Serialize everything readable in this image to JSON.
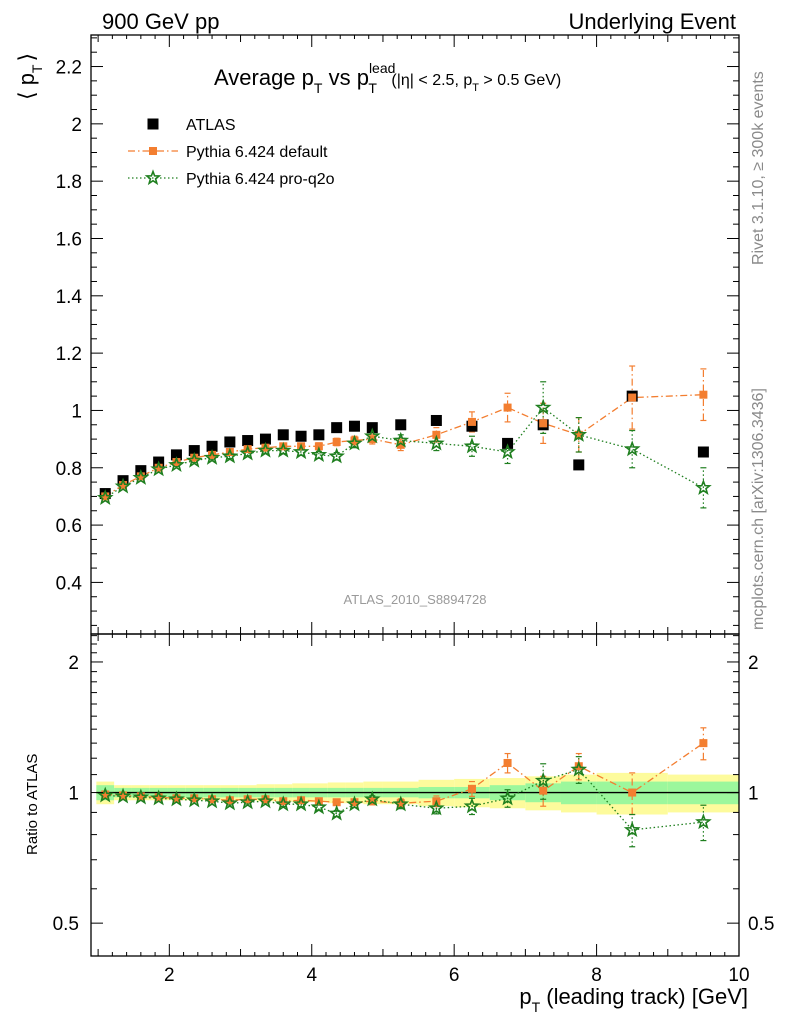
{
  "header": {
    "left": "900 GeV pp",
    "right": "Underlying Event"
  },
  "side_text": {
    "rivet": "Rivet 3.1.10, ≥ 300k events",
    "mcplots": "mcplots.cern.ch [arXiv:1306.3436]"
  },
  "chart_data": [
    {
      "type": "scatter",
      "title": {
        "prefix": "Average p",
        "prefix_sub": "T",
        "vs": " vs p",
        "vs_sup": "lead",
        "vs_sub": "T",
        "cuts_1": "(|η| < 2.5, p",
        "cuts_sub": "T",
        "cuts_2": " > 0.5 GeV)"
      },
      "ylabel": {
        "main": "⟨ p",
        "sub": "T",
        "close": "⟩"
      },
      "watermark": "ATLAS_2010_S8894728",
      "xlim": [
        0.9,
        10.0
      ],
      "ylim": [
        0.22,
        2.31
      ],
      "y_ticks": [
        0.4,
        0.6,
        0.8,
        1,
        1.2,
        1.4,
        1.6,
        1.8,
        2,
        2.2
      ],
      "y_tick_labels": [
        "0.4",
        "0.6",
        "0.8",
        "1",
        "1.2",
        "1.4",
        "1.6",
        "1.8",
        "2",
        "2.2"
      ],
      "x": [
        1.1,
        1.35,
        1.6,
        1.85,
        2.1,
        2.35,
        2.6,
        2.85,
        3.1,
        3.35,
        3.6,
        3.85,
        4.1,
        4.35,
        4.6,
        4.85,
        5.25,
        5.75,
        6.25,
        6.75,
        7.25,
        7.75,
        8.5,
        9.5
      ],
      "series": [
        {
          "name": "ATLAS",
          "color": "#000000",
          "marker": "square",
          "values": [
            0.71,
            0.755,
            0.79,
            0.82,
            0.845,
            0.86,
            0.875,
            0.89,
            0.895,
            0.9,
            0.915,
            0.91,
            0.915,
            0.94,
            0.945,
            0.94,
            0.95,
            0.965,
            0.945,
            0.885,
            0.95,
            0.81,
            1.05,
            0.855
          ]
        },
        {
          "name": "Pythia 6.424 default",
          "color": "#f37e30",
          "marker": "square-small",
          "line": "dashdot",
          "values": [
            0.7,
            0.74,
            0.77,
            0.8,
            0.82,
            0.835,
            0.845,
            0.855,
            0.865,
            0.87,
            0.875,
            0.875,
            0.875,
            0.89,
            0.895,
            0.9,
            0.88,
            0.915,
            0.96,
            1.01,
            0.955,
            0.915,
            1.045,
            1.055
          ],
          "errors": [
            0.005,
            0.005,
            0.005,
            0.006,
            0.006,
            0.007,
            0.007,
            0.008,
            0.008,
            0.009,
            0.01,
            0.011,
            0.012,
            0.013,
            0.015,
            0.017,
            0.02,
            0.025,
            0.035,
            0.05,
            0.07,
            0.06,
            0.11,
            0.09
          ]
        },
        {
          "name": "Pythia 6.424 pro-q2o",
          "color": "#1f7f1f",
          "marker": "star",
          "line": "dotted",
          "values": [
            0.695,
            0.735,
            0.765,
            0.795,
            0.81,
            0.825,
            0.835,
            0.84,
            0.85,
            0.86,
            0.86,
            0.855,
            0.845,
            0.84,
            0.885,
            0.91,
            0.895,
            0.885,
            0.875,
            0.855,
            1.01,
            0.915,
            0.865,
            0.73
          ],
          "errors": [
            0.005,
            0.005,
            0.005,
            0.006,
            0.006,
            0.007,
            0.007,
            0.008,
            0.008,
            0.009,
            0.01,
            0.011,
            0.012,
            0.013,
            0.015,
            0.017,
            0.02,
            0.025,
            0.035,
            0.04,
            0.09,
            0.06,
            0.065,
            0.07
          ]
        }
      ]
    },
    {
      "type": "scatter",
      "ylabel": "Ratio to ATLAS",
      "xlabel": {
        "main": "p",
        "sub": "T",
        "rest": " (leading track) [GeV]"
      },
      "scale": "log",
      "xlim": [
        0.9,
        10.0
      ],
      "ylim": [
        0.42,
        2.32
      ],
      "x_ticks": [
        2,
        4,
        6,
        8,
        10
      ],
      "x_tick_labels": [
        "2",
        "4",
        "6",
        "8",
        "10"
      ],
      "y_ticks": [
        0.5,
        1,
        2
      ],
      "y_tick_labels": [
        "0.5",
        "1",
        "2"
      ],
      "band_x_edges": [
        0.975,
        1.225,
        1.475,
        1.725,
        1.975,
        2.225,
        2.475,
        2.725,
        2.975,
        3.225,
        3.475,
        3.725,
        3.975,
        4.225,
        4.475,
        4.725,
        5.0,
        5.5,
        6.0,
        6.5,
        7.0,
        7.5,
        8.0,
        9.0,
        10.0
      ],
      "band_stat": [
        0.04,
        0.025,
        0.025,
        0.025,
        0.025,
        0.025,
        0.025,
        0.025,
        0.025,
        0.025,
        0.025,
        0.025,
        0.025,
        0.025,
        0.025,
        0.025,
        0.025,
        0.03,
        0.03,
        0.04,
        0.05,
        0.06,
        0.06,
        0.06
      ],
      "band_total": [
        0.06,
        0.04,
        0.04,
        0.04,
        0.04,
        0.04,
        0.04,
        0.04,
        0.04,
        0.045,
        0.045,
        0.05,
        0.05,
        0.055,
        0.055,
        0.06,
        0.06,
        0.07,
        0.075,
        0.08,
        0.09,
        0.1,
        0.11,
        0.1
      ],
      "x": [
        1.1,
        1.35,
        1.6,
        1.85,
        2.1,
        2.35,
        2.6,
        2.85,
        3.1,
        3.35,
        3.6,
        3.85,
        4.1,
        4.35,
        4.6,
        4.85,
        5.25,
        5.75,
        6.25,
        6.75,
        7.25,
        7.75,
        8.5,
        9.5
      ],
      "series": [
        {
          "name": "Pythia 6.424 default",
          "color": "#f37e30",
          "marker": "square-small",
          "line": "dashdot",
          "values": [
            0.99,
            0.985,
            0.98,
            0.975,
            0.97,
            0.97,
            0.965,
            0.96,
            0.965,
            0.965,
            0.955,
            0.96,
            0.955,
            0.95,
            0.95,
            0.955,
            0.945,
            0.955,
            1.02,
            1.17,
            1.01,
            1.15,
            1.0,
            1.3
          ],
          "errors": [
            0.006,
            0.006,
            0.006,
            0.007,
            0.007,
            0.008,
            0.008,
            0.009,
            0.009,
            0.01,
            0.011,
            0.012,
            0.013,
            0.014,
            0.016,
            0.018,
            0.022,
            0.027,
            0.04,
            0.06,
            0.08,
            0.08,
            0.11,
            0.11
          ]
        },
        {
          "name": "Pythia 6.424 pro-q2o",
          "color": "#1f7f1f",
          "marker": "star",
          "line": "dotted",
          "values": [
            0.985,
            0.98,
            0.975,
            0.97,
            0.965,
            0.96,
            0.955,
            0.945,
            0.95,
            0.955,
            0.94,
            0.94,
            0.925,
            0.895,
            0.94,
            0.965,
            0.94,
            0.92,
            0.93,
            0.97,
            1.065,
            1.13,
            0.82,
            0.855
          ],
          "errors": [
            0.006,
            0.006,
            0.006,
            0.007,
            0.007,
            0.008,
            0.008,
            0.009,
            0.009,
            0.01,
            0.011,
            0.012,
            0.013,
            0.014,
            0.016,
            0.018,
            0.022,
            0.027,
            0.04,
            0.045,
            0.1,
            0.08,
            0.07,
            0.08
          ]
        }
      ]
    }
  ]
}
